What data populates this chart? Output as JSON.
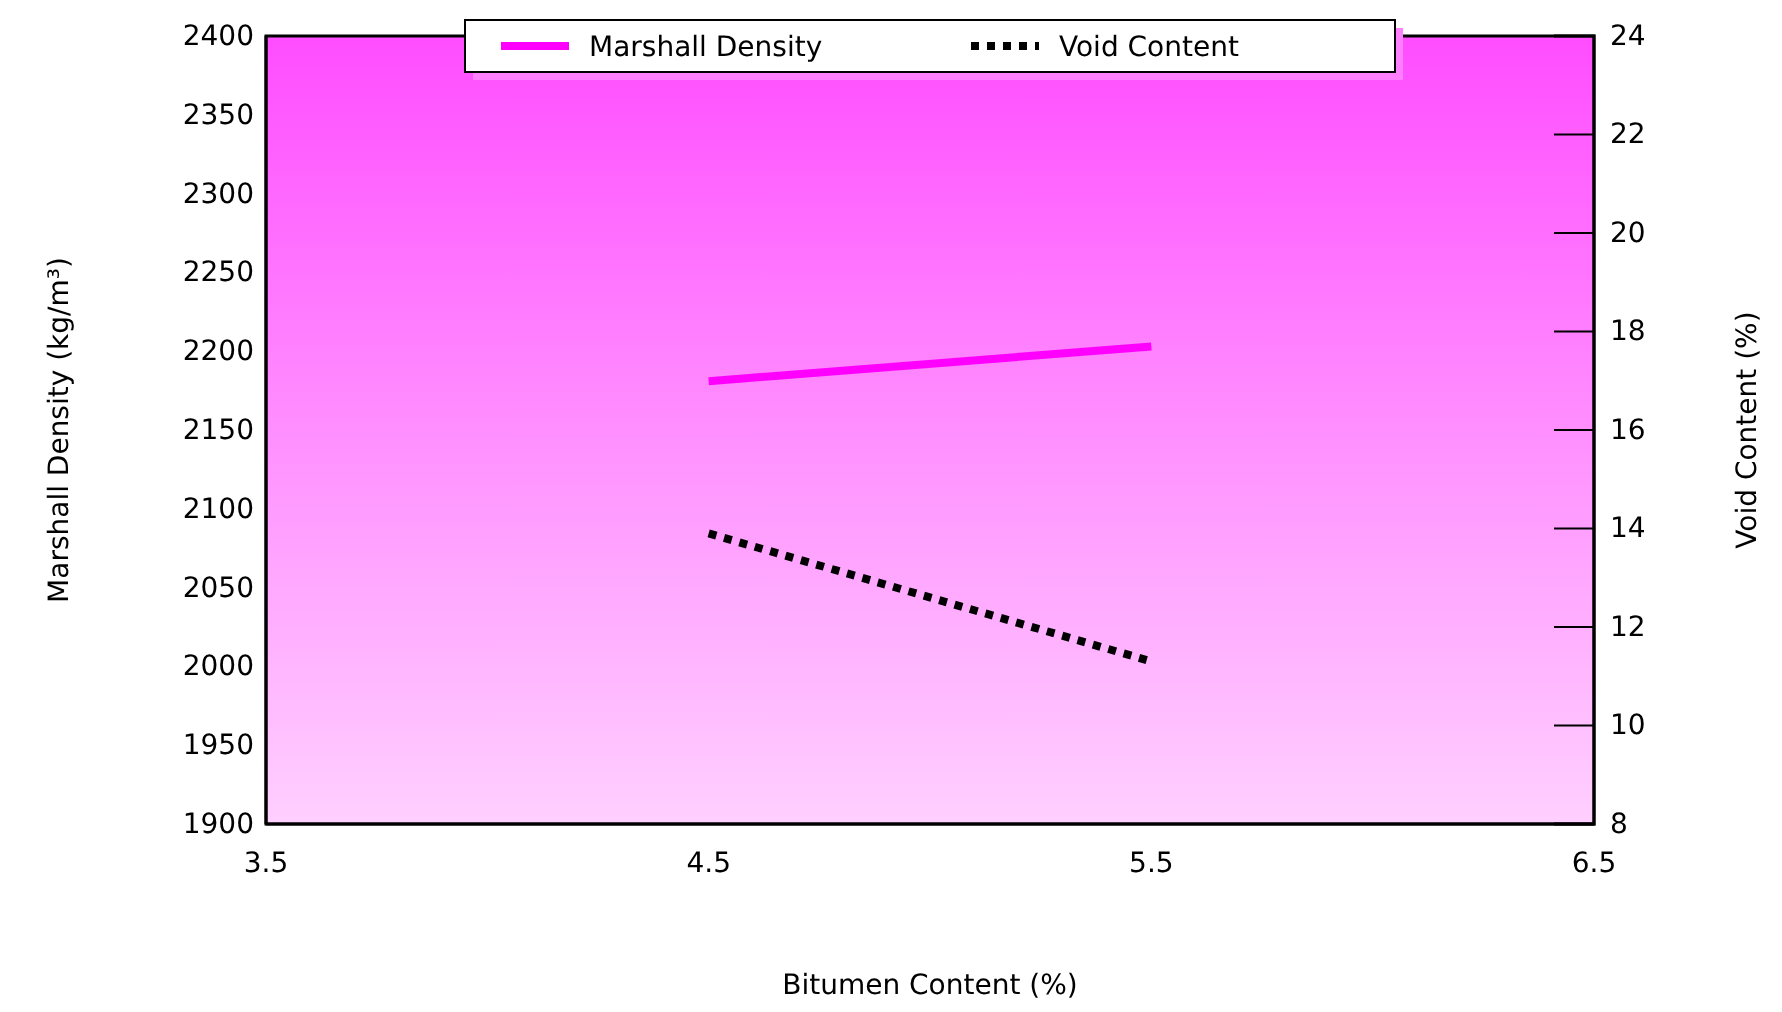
{
  "chart_data": {
    "type": "line",
    "xlabel": "Bitumen Content (%)",
    "ylabel": "Marshall Density (kg/m³)",
    "y2label": "Void Content (%)",
    "x": [
      4.5,
      5.5
    ],
    "series": [
      {
        "name": "Marshall Density",
        "color": "#ff00ff",
        "values": [
          2181,
          2203
        ],
        "line_style": "solid"
      },
      {
        "name": "Void Content",
        "color": "#000000",
        "values": [
          13.9,
          11.3
        ],
        "line_style": "dotted",
        "axis": "y2"
      }
    ],
    "xlim": [
      3.5,
      6.5
    ],
    "xticks": [
      3.5,
      4.5,
      5.5,
      6.5
    ],
    "ylim": [
      1900,
      2400
    ],
    "yticks": [
      1900,
      1950,
      2000,
      2050,
      2100,
      2150,
      2200,
      2250,
      2300,
      2350,
      2400
    ],
    "y2lim": [
      8,
      24
    ],
    "y2ticks": [
      8,
      10,
      12,
      14,
      16,
      18,
      20,
      22,
      24
    ],
    "legend": "top",
    "grid": false
  }
}
